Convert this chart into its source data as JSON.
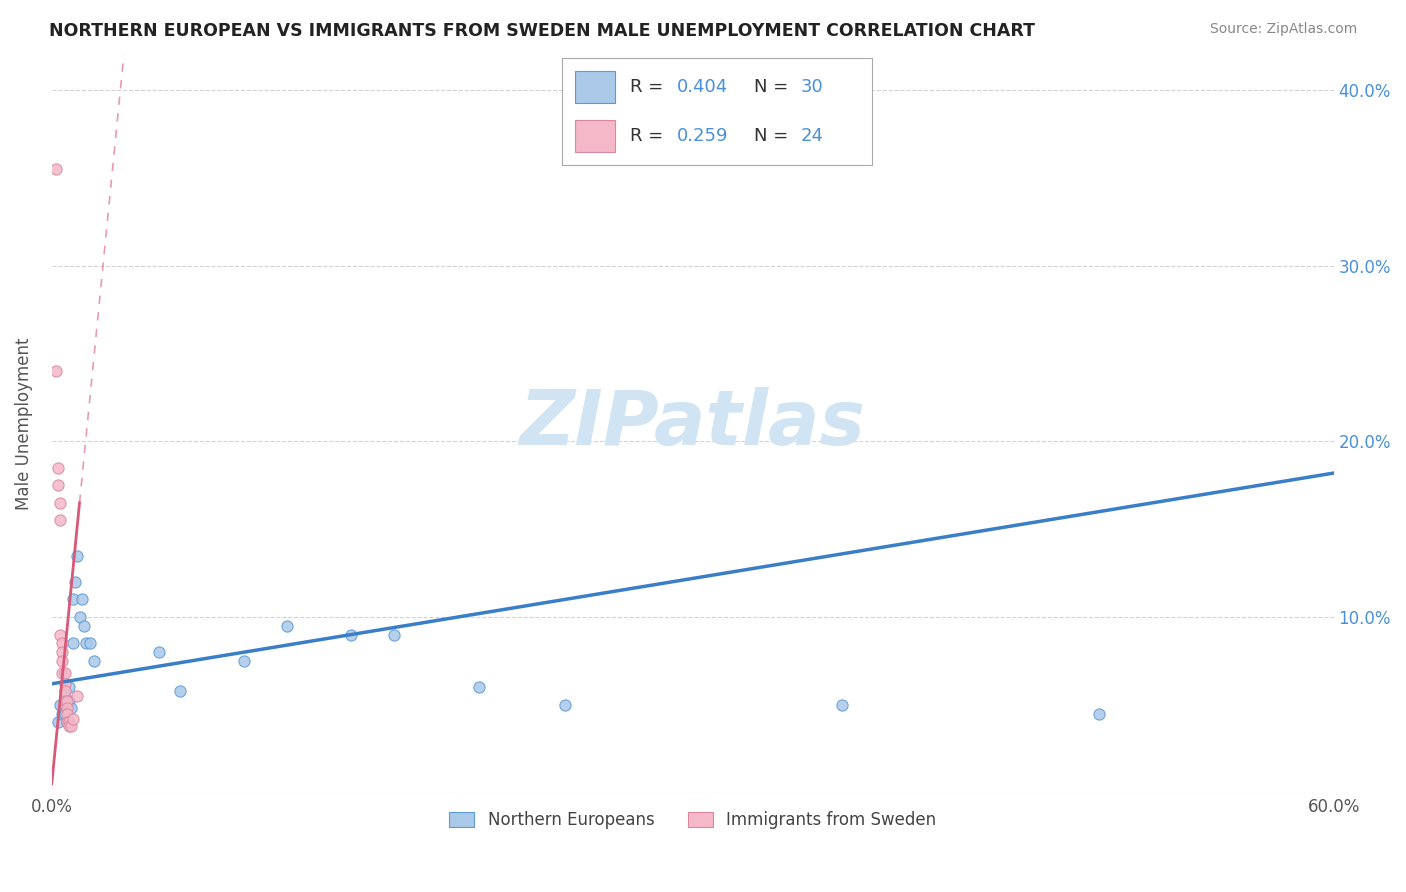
{
  "title": "NORTHERN EUROPEAN VS IMMIGRANTS FROM SWEDEN MALE UNEMPLOYMENT CORRELATION CHART",
  "source": "Source: ZipAtlas.com",
  "ylabel": "Male Unemployment",
  "xlim": [
    0,
    0.6
  ],
  "ylim": [
    0,
    0.42
  ],
  "xtick_positions": [
    0.0,
    0.1,
    0.2,
    0.3,
    0.4,
    0.5,
    0.6
  ],
  "xtick_labels": [
    "0.0%",
    "",
    "",
    "",
    "",
    "",
    "60.0%"
  ],
  "ytick_positions": [
    0.0,
    0.1,
    0.2,
    0.3,
    0.4
  ],
  "ytick_labels_right": [
    "",
    "10.0%",
    "20.0%",
    "30.0%",
    "40.0%"
  ],
  "blue_R": 0.404,
  "blue_N": 30,
  "pink_R": 0.259,
  "pink_N": 24,
  "blue_color": "#aac8e8",
  "blue_edge_color": "#5a9ad5",
  "pink_color": "#f4b8c8",
  "pink_edge_color": "#d888a0",
  "blue_line_color": "#3a7ec8",
  "pink_line_color": "#d85878",
  "grid_color": "#c8c8c8",
  "title_color": "#222222",
  "source_color": "#888888",
  "watermark": "ZIPatlas",
  "watermark_color": "#d0e4f4",
  "legend_color": "#4a90d9",
  "blue_scatter_x": [
    0.003,
    0.004,
    0.005,
    0.006,
    0.006,
    0.007,
    0.007,
    0.008,
    0.008,
    0.009,
    0.01,
    0.01,
    0.011,
    0.012,
    0.013,
    0.014,
    0.015,
    0.016,
    0.018,
    0.02,
    0.05,
    0.06,
    0.09,
    0.11,
    0.14,
    0.16,
    0.2,
    0.24,
    0.37,
    0.49
  ],
  "blue_scatter_y": [
    0.04,
    0.05,
    0.045,
    0.058,
    0.045,
    0.052,
    0.04,
    0.06,
    0.052,
    0.048,
    0.085,
    0.11,
    0.12,
    0.135,
    0.1,
    0.11,
    0.095,
    0.085,
    0.085,
    0.075,
    0.08,
    0.058,
    0.075,
    0.095,
    0.09,
    0.09,
    0.06,
    0.05,
    0.05,
    0.045
  ],
  "pink_scatter_x": [
    0.002,
    0.002,
    0.003,
    0.003,
    0.004,
    0.004,
    0.004,
    0.005,
    0.005,
    0.005,
    0.005,
    0.006,
    0.006,
    0.006,
    0.006,
    0.007,
    0.007,
    0.007,
    0.007,
    0.008,
    0.008,
    0.009,
    0.01,
    0.012
  ],
  "pink_scatter_y": [
    0.355,
    0.24,
    0.185,
    0.175,
    0.165,
    0.155,
    0.09,
    0.085,
    0.08,
    0.075,
    0.068,
    0.068,
    0.062,
    0.058,
    0.052,
    0.052,
    0.048,
    0.045,
    0.04,
    0.04,
    0.038,
    0.038,
    0.042,
    0.055
  ],
  "blue_line_x0": 0.0,
  "blue_line_y0": 0.062,
  "blue_line_x1": 0.6,
  "blue_line_y1": 0.182,
  "pink_line_x0": 0.0,
  "pink_line_y0": 0.005,
  "pink_line_x1": 0.013,
  "pink_line_y1": 0.165
}
